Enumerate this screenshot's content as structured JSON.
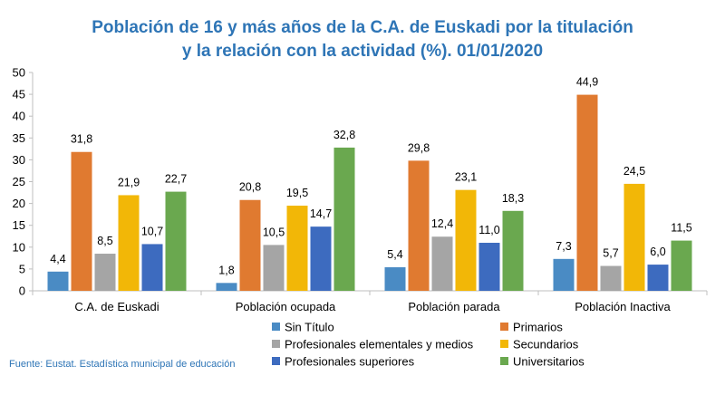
{
  "chart_data": {
    "type": "bar",
    "title": "Población de 16 y más años de la C.A. de Euskadi por la titulación",
    "title_line2": "y la relación con la actividad (%). 01/01/2020",
    "ylim": [
      0,
      50
    ],
    "yticks": [
      "0",
      "5",
      "10",
      "15",
      "20",
      "25",
      "30",
      "35",
      "40",
      "45",
      "50"
    ],
    "ytick_values": [
      0,
      5,
      10,
      15,
      20,
      25,
      30,
      35,
      40,
      45,
      50
    ],
    "categories": [
      "C.A. de Euskadi",
      "Población ocupada",
      "Población parada",
      "Población Inactiva"
    ],
    "series": [
      {
        "name": "Sin Título",
        "color": "#4a8bc4",
        "values": [
          4.4,
          1.8,
          5.4,
          7.3
        ],
        "labels": [
          "4,4",
          "1,8",
          "5,4",
          "7,3"
        ]
      },
      {
        "name": "Primarios",
        "color": "#e07a30",
        "values": [
          31.8,
          20.8,
          29.8,
          44.9
        ],
        "labels": [
          "31,8",
          "20,8",
          "29,8",
          "44,9"
        ]
      },
      {
        "name": "Profesionales elementales y medios",
        "color": "#a5a5a5",
        "values": [
          8.5,
          10.5,
          12.4,
          5.7
        ],
        "labels": [
          "8,5",
          "10,5",
          "12,4",
          "5,7"
        ]
      },
      {
        "name": "Secundarios",
        "color": "#f2b707",
        "values": [
          21.9,
          19.5,
          23.1,
          24.5
        ],
        "labels": [
          "21,9",
          "19,5",
          "23,1",
          "24,5"
        ]
      },
      {
        "name": "Profesionales superiores",
        "color": "#3d6bbf",
        "values": [
          10.7,
          14.7,
          11.0,
          6.0
        ],
        "labels": [
          "10,7",
          "14,7",
          "11,0",
          "6,0"
        ]
      },
      {
        "name": "Universitarios",
        "color": "#6aa84f",
        "values": [
          22.7,
          32.8,
          18.3,
          11.5
        ],
        "labels": [
          "22,7",
          "32,8",
          "18,3",
          "11,5"
        ]
      }
    ],
    "legend_position": "bottom"
  },
  "source": "Fuente: Eustat. Estadística municipal de educación"
}
